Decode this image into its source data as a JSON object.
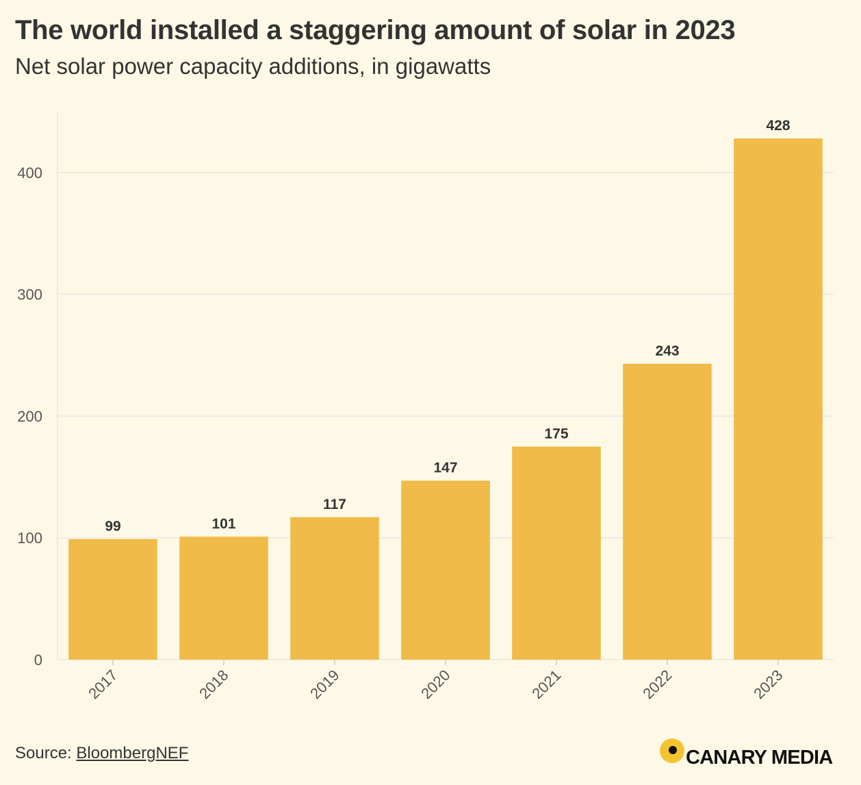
{
  "header": {
    "title": "The world installed a staggering amount of solar in 2023",
    "subtitle": "Net solar power capacity additions, in gigawatts"
  },
  "footer": {
    "source_label": "Source: ",
    "source_link": "BloombergNEF",
    "brand": "CANARY MEDIA"
  },
  "colors": {
    "background": "#fef9e6",
    "bar": "#f0bb48",
    "grid": "#ecebe6",
    "text": "#333333",
    "brand_dot": "#f4c430"
  },
  "chart_data": {
    "type": "bar",
    "title": "The world installed a staggering amount of solar in 2023",
    "subtitle": "Net solar power capacity additions, in gigawatts",
    "xlabel": "",
    "ylabel": "",
    "categories": [
      "2017",
      "2018",
      "2019",
      "2020",
      "2021",
      "2022",
      "2023"
    ],
    "values": [
      99,
      101,
      117,
      147,
      175,
      243,
      428
    ],
    "value_labels": [
      "99",
      "101",
      "117",
      "147",
      "175",
      "243",
      "428"
    ],
    "ylim": [
      0,
      450
    ],
    "yticks": [
      0,
      100,
      200,
      300,
      400
    ],
    "ytick_labels": [
      "0",
      "100",
      "200",
      "300",
      "400"
    ],
    "grid": true,
    "legend": "none"
  }
}
